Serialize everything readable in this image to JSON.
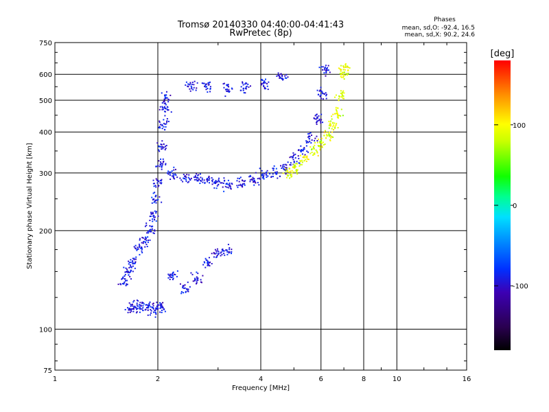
{
  "chart_data": {
    "type": "scatter",
    "title": "Tromsø 20140330 04:40:00-04:41:43",
    "subtitle": "RwPretec (8p)",
    "xlabel": "Frequency [MHz]",
    "ylabel": "Stationary phase Virtual Height [km]",
    "x_scale": "log",
    "y_scale": "log",
    "xlim": [
      1,
      16
    ],
    "ylim": [
      75,
      750
    ],
    "grid": true,
    "xticks": [
      {
        "value": 1,
        "label": "1"
      },
      {
        "value": 2,
        "label": "2"
      },
      {
        "value": 4,
        "label": "4"
      },
      {
        "value": 6,
        "label": "6"
      },
      {
        "value": 8,
        "label": "8"
      },
      {
        "value": 10,
        "label": "10"
      },
      {
        "value": 16,
        "label": "16"
      }
    ],
    "xgrid": [
      2,
      4,
      6,
      8,
      10
    ],
    "yticks": [
      {
        "value": 75,
        "label": "75"
      },
      {
        "value": 100,
        "label": "100"
      },
      {
        "value": 200,
        "label": "200"
      },
      {
        "value": 300,
        "label": "300"
      },
      {
        "value": 400,
        "label": "400"
      },
      {
        "value": 500,
        "label": "500"
      },
      {
        "value": 600,
        "label": "600"
      },
      {
        "value": 750,
        "label": "750"
      }
    ],
    "ygrid": [
      100,
      200,
      300,
      400,
      500,
      600
    ],
    "phase_info": {
      "heading": "Phases",
      "line_o": "mean, sd,O: -92.4, 16.5",
      "line_x": "mean, sd,X:  90.2, 24.6"
    },
    "colorbar": {
      "label": "[deg]",
      "range": [
        -180,
        180
      ],
      "ticks": [
        {
          "value": 100,
          "label": "100"
        },
        {
          "value": 0,
          "label": "0"
        },
        {
          "value": -100,
          "label": "-100"
        }
      ]
    },
    "series": [
      {
        "component": "O",
        "phase_mean_deg": -92.4,
        "phase_sd_deg": 16.5,
        "trace_points": [
          [
            1.66,
            115
          ],
          [
            1.72,
            117
          ],
          [
            1.8,
            118
          ],
          [
            1.9,
            116
          ],
          [
            1.98,
            114
          ],
          [
            2.05,
            117
          ],
          [
            1.6,
            140
          ],
          [
            1.65,
            150
          ],
          [
            1.7,
            160
          ],
          [
            1.78,
            175
          ],
          [
            1.85,
            185
          ],
          [
            1.9,
            200
          ],
          [
            1.93,
            220
          ],
          [
            1.96,
            250
          ],
          [
            2.0,
            280
          ],
          [
            2.04,
            320
          ],
          [
            2.06,
            360
          ],
          [
            2.08,
            420
          ],
          [
            2.1,
            470
          ],
          [
            2.12,
            510
          ],
          [
            2.2,
            300
          ],
          [
            2.4,
            292
          ],
          [
            2.6,
            290
          ],
          [
            2.8,
            283
          ],
          [
            3.0,
            278
          ],
          [
            3.2,
            277
          ],
          [
            3.5,
            280
          ],
          [
            3.8,
            287
          ],
          [
            4.1,
            295
          ],
          [
            4.4,
            300
          ],
          [
            4.7,
            312
          ],
          [
            5.0,
            330
          ],
          [
            5.3,
            350
          ],
          [
            5.6,
            385
          ],
          [
            5.9,
            440
          ],
          [
            6.05,
            520
          ],
          [
            6.2,
            620
          ],
          [
            2.2,
            145
          ],
          [
            2.4,
            132
          ],
          [
            2.6,
            142
          ],
          [
            2.8,
            158
          ],
          [
            3.0,
            168
          ],
          [
            3.2,
            175
          ],
          [
            2.5,
            555
          ],
          [
            2.8,
            550
          ],
          [
            3.2,
            540
          ],
          [
            3.6,
            550
          ],
          [
            4.1,
            560
          ],
          [
            4.6,
            590
          ]
        ]
      },
      {
        "component": "X",
        "phase_mean_deg": 90.2,
        "phase_sd_deg": 24.6,
        "trace_points": [
          [
            4.8,
            300
          ],
          [
            5.1,
            310
          ],
          [
            5.4,
            330
          ],
          [
            5.7,
            350
          ],
          [
            6.0,
            370
          ],
          [
            6.3,
            390
          ],
          [
            6.5,
            420
          ],
          [
            6.7,
            460
          ],
          [
            6.85,
            520
          ],
          [
            7.0,
            600
          ],
          [
            7.05,
            630
          ]
        ]
      }
    ]
  }
}
